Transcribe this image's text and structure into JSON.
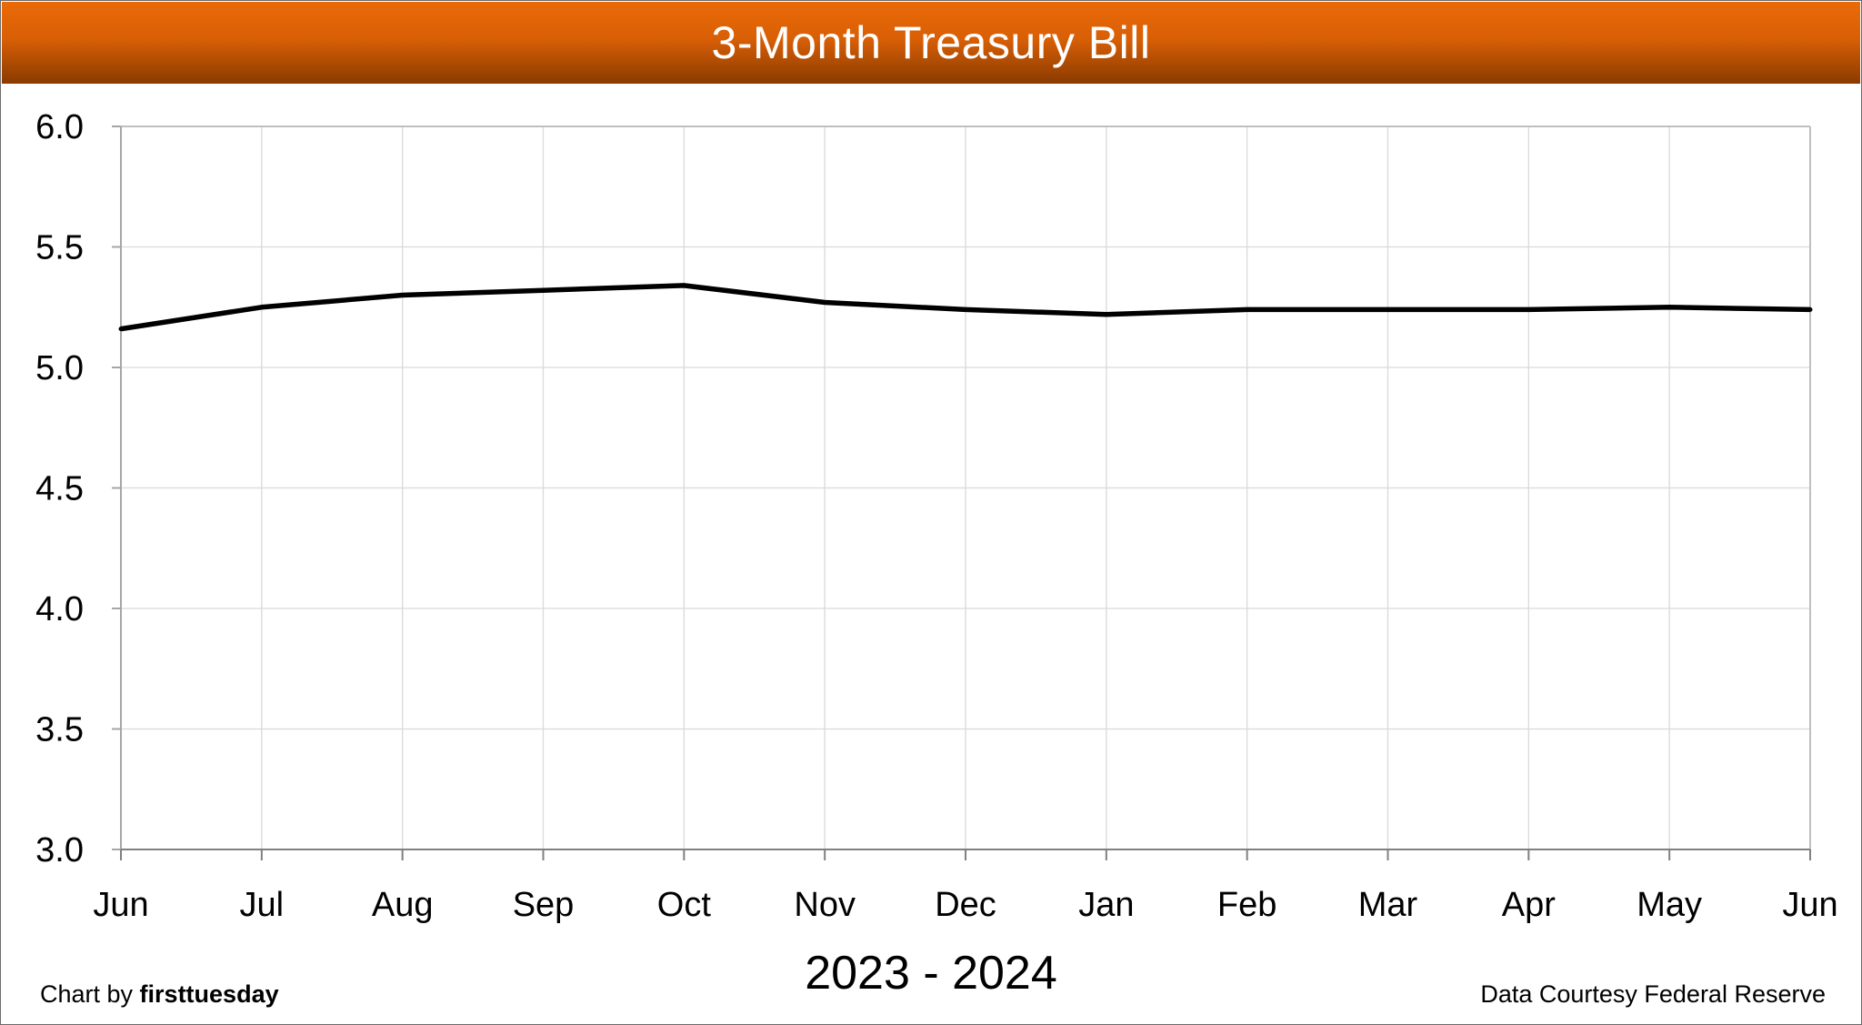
{
  "chart_data": {
    "type": "line",
    "title": "3-Month Treasury Bill",
    "xlabel": "2023 - 2024",
    "ylabel": "",
    "categories": [
      "Jun",
      "Jul",
      "Aug",
      "Sep",
      "Oct",
      "Nov",
      "Dec",
      "Jan",
      "Feb",
      "Mar",
      "Apr",
      "May",
      "Jun"
    ],
    "series": [
      {
        "values": [
          5.16,
          5.25,
          5.3,
          5.32,
          5.34,
          5.27,
          5.24,
          5.22,
          5.24,
          5.24,
          5.24,
          5.25,
          5.24
        ],
        "color": "#000000"
      }
    ],
    "ylim": [
      3.0,
      6.0
    ],
    "yticks": [
      "3.0",
      "3.5",
      "4.0",
      "4.5",
      "5.0",
      "5.5",
      "6.0"
    ],
    "grid": true
  },
  "footer": {
    "credit_prefix": "Chart by ",
    "credit_brand": "firsttuesday",
    "source": "Data Courtesy Federal Reserve"
  },
  "colors": {
    "header": "#d95f05",
    "line": "#000000",
    "grid": "#d9d9d9"
  }
}
